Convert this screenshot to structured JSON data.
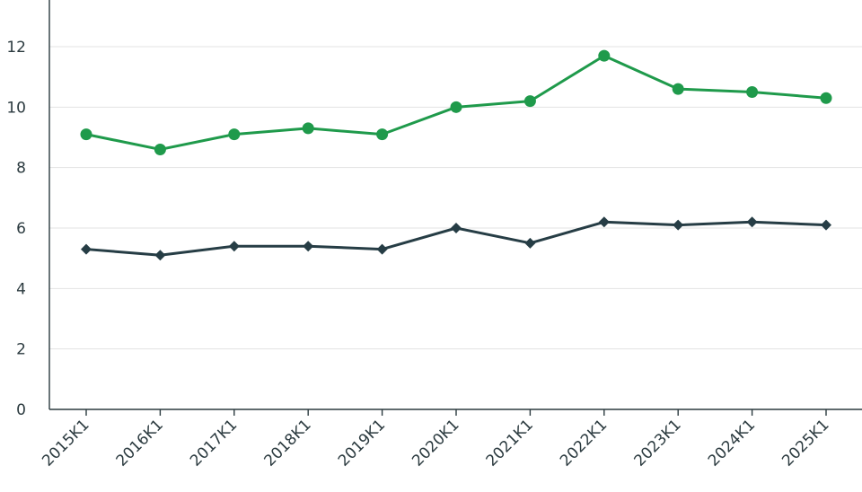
{
  "chart_data": {
    "type": "line",
    "title": "",
    "xlabel": "",
    "ylabel": "",
    "categories": [
      "2015K1",
      "2016K1",
      "2017K1",
      "2018K1",
      "2019K1",
      "2020K1",
      "2021K1",
      "2022K1",
      "2023K1",
      "2024K1",
      "2025K1"
    ],
    "ylim": [
      0,
      13
    ],
    "yticks": [
      0,
      2,
      4,
      6,
      8,
      10,
      12
    ],
    "grid": true,
    "legend": "none",
    "series": [
      {
        "values": [
          9.1,
          8.6,
          9.1,
          9.3,
          9.1,
          10.0,
          10.2,
          11.7,
          10.6,
          10.5,
          10.3
        ],
        "color": "#1f9a4b",
        "marker": "circle"
      },
      {
        "values": [
          5.3,
          5.1,
          5.4,
          5.4,
          5.3,
          6.0,
          5.5,
          6.2,
          6.1,
          6.2,
          6.1
        ],
        "color": "#263d45",
        "marker": "diamond"
      }
    ]
  }
}
